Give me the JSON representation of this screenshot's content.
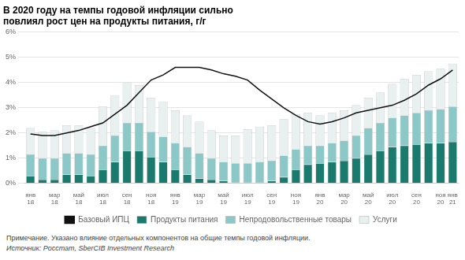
{
  "chart_data": {
    "type": "bar",
    "title": "В 2020 году на темпы годовой инфляции сильно\nповлиял рост цен на продукты питания, г/г",
    "note": "Примечание. Указано влияние отдельных компонентов на общие темпы годовой инфляции.",
    "source": "Источник: Росстат, SberCIB Investment Research",
    "categories": [
      "янв\n18",
      null,
      "мар\n18",
      null,
      "май\n18",
      null,
      "июл\n18",
      null,
      "сен\n18",
      null,
      "ноя\n18",
      null,
      "янв\n19",
      null,
      "мар\n19",
      null,
      "май\n19",
      null,
      "июл\n19",
      null,
      "сен\n19",
      null,
      "ноя\n19",
      null,
      "янв\n20",
      null,
      "мар\n20",
      null,
      "май\n20",
      null,
      "июл\n20",
      null,
      "сен\n20",
      null,
      "ноя\n20",
      "янв\n21"
    ],
    "series": [
      {
        "name": "Продукты питания",
        "color": "#1a7a6e",
        "values": [
          0.3,
          0.15,
          0.15,
          0.35,
          0.35,
          0.3,
          0.55,
          0.85,
          1.3,
          1.3,
          1.05,
          0.85,
          0.55,
          0.35,
          0.2,
          0.15,
          0.1,
          0.05,
          0.05,
          0.05,
          0.1,
          0.25,
          0.55,
          0.75,
          0.8,
          0.85,
          0.9,
          1.0,
          1.15,
          1.3,
          1.45,
          1.5,
          1.55,
          1.6,
          1.6,
          1.65
        ]
      },
      {
        "name": "Непродовольственные товары",
        "color": "#8dc8c8",
        "values": [
          0.85,
          0.85,
          0.85,
          0.85,
          0.85,
          0.85,
          0.95,
          1.05,
          1.1,
          1.1,
          1.0,
          1.0,
          1.05,
          1.1,
          1.0,
          0.85,
          0.75,
          0.75,
          0.75,
          0.8,
          0.8,
          0.85,
          0.8,
          0.75,
          0.7,
          0.75,
          0.8,
          0.9,
          1.05,
          1.1,
          1.15,
          1.2,
          1.25,
          1.3,
          1.35,
          1.4
        ]
      },
      {
        "name": "Услуги",
        "color": "#e8f0f0",
        "values": [
          1.05,
          1.05,
          1.1,
          1.1,
          1.1,
          1.05,
          1.55,
          1.6,
          1.6,
          1.5,
          1.35,
          1.4,
          1.3,
          1.25,
          1.25,
          1.1,
          1.05,
          1.1,
          1.35,
          1.4,
          1.4,
          1.45,
          1.4,
          1.3,
          1.2,
          1.2,
          1.2,
          1.2,
          1.2,
          1.2,
          1.35,
          1.45,
          1.5,
          1.55,
          1.6,
          1.7
        ]
      },
      {
        "name": "Базовый ИПЦ",
        "type": "line",
        "color": "#111111",
        "values": [
          1.96,
          1.9,
          1.9,
          2.0,
          2.1,
          2.25,
          2.4,
          2.75,
          3.1,
          3.6,
          4.1,
          4.3,
          4.6,
          4.6,
          4.6,
          4.5,
          4.35,
          4.25,
          4.1,
          3.7,
          3.35,
          3.0,
          2.7,
          2.45,
          2.35,
          2.45,
          2.6,
          2.8,
          2.9,
          3.0,
          3.1,
          3.3,
          3.55,
          3.9,
          4.15,
          4.5
        ]
      }
    ],
    "ylim": [
      0,
      6
    ],
    "yticks": [
      {
        "value": 0,
        "label": "0%"
      },
      {
        "value": 1,
        "label": "1%"
      },
      {
        "value": 2,
        "label": "2%"
      },
      {
        "value": 3,
        "label": "3%"
      },
      {
        "value": 4,
        "label": "4%"
      },
      {
        "value": 5,
        "label": "5%"
      },
      {
        "value": 6,
        "label": "6%"
      }
    ],
    "grid": true,
    "stacked": true,
    "legend": "bottom"
  }
}
